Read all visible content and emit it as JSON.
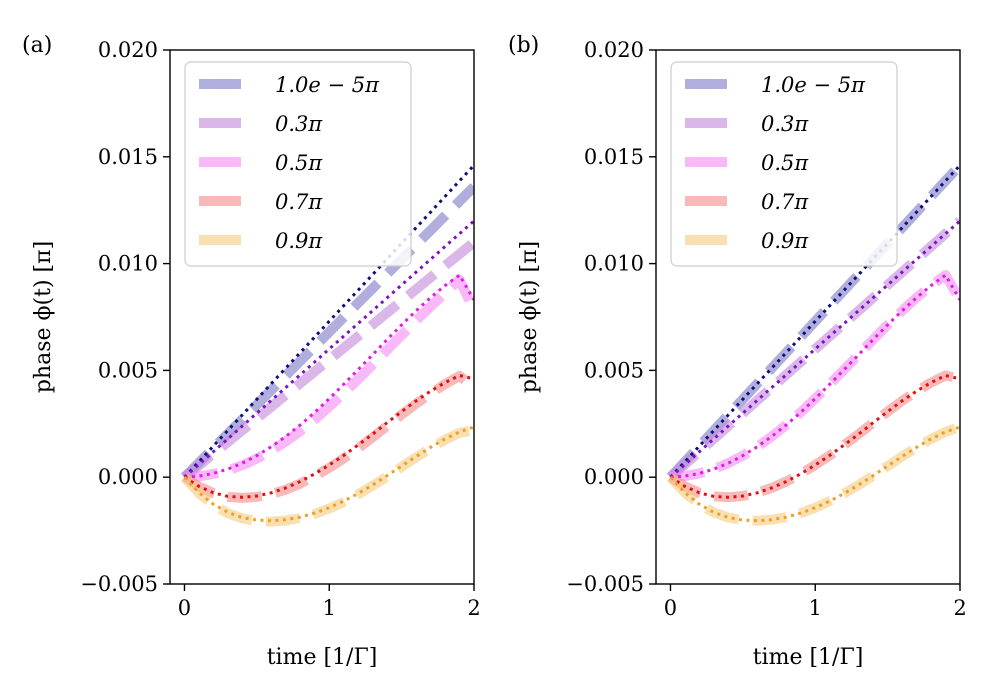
{
  "chart_data": [
    {
      "type": "line",
      "panel_label": "(a)",
      "xlabel": "time [1/Γ]",
      "ylabel": "phase ϕ(t) [π]",
      "xlim": [
        -0.1,
        2.0
      ],
      "ylim": [
        -0.005,
        0.02
      ],
      "xticks": [
        0,
        1,
        2
      ],
      "xtick_labels": [
        "0",
        "1",
        "2"
      ],
      "yticks": [
        -0.005,
        0.0,
        0.005,
        0.01,
        0.015,
        0.02
      ],
      "ytick_labels": [
        "−0.005",
        "0.000",
        "0.005",
        "0.010",
        "0.015",
        "0.020"
      ],
      "legend_position": "top-left",
      "x": [
        0,
        0.1,
        0.2,
        0.3,
        0.4,
        0.5,
        0.6,
        0.7,
        0.8,
        0.9,
        1.0,
        1.1,
        1.2,
        1.3,
        1.4,
        1.5,
        1.6,
        1.7,
        1.8,
        1.9,
        2.0
      ],
      "series": [
        {
          "name": "1.0e − 5π",
          "style": "dashed-band",
          "color": "#7b78c4",
          "values": [
            0,
            0.00068,
            0.00136,
            0.00204,
            0.00272,
            0.0034,
            0.00408,
            0.00476,
            0.00544,
            0.00612,
            0.0068,
            0.00748,
            0.00816,
            0.00884,
            0.00952,
            0.0102,
            0.01088,
            0.01156,
            0.01224,
            0.01292,
            0.0136
          ]
        },
        {
          "name": "0.3π",
          "style": "dashed-band",
          "color": "#c387db",
          "values": [
            0,
            0.00055,
            0.0011,
            0.00165,
            0.0022,
            0.00275,
            0.0033,
            0.00385,
            0.0044,
            0.00495,
            0.0055,
            0.00605,
            0.0066,
            0.00715,
            0.0077,
            0.00825,
            0.0088,
            0.00935,
            0.0099,
            0.01045,
            0.011
          ]
        },
        {
          "name": "0.5π",
          "style": "dashed-band",
          "color": "#f58bf5",
          "values": [
            0,
            4e-05,
            0.00015,
            0.00032,
            0.00056,
            0.00087,
            0.00124,
            0.00167,
            0.00216,
            0.00271,
            0.0033,
            0.00393,
            0.00459,
            0.00527,
            0.00596,
            0.00665,
            0.00733,
            0.00799,
            0.00863,
            0.00925,
            0.0078
          ]
        },
        {
          "name": "0.7π",
          "style": "dashed-band",
          "color": "#f48a8a",
          "values": [
            0,
            -0.00044,
            -0.00075,
            -0.00092,
            -0.00097,
            -0.00092,
            -0.00079,
            -0.00058,
            -0.0003,
            5e-05,
            0.00044,
            0.00088,
            0.00136,
            0.00187,
            0.0024,
            0.00293,
            0.00344,
            0.00392,
            0.00436,
            0.00474,
            0.0042
          ]
        },
        {
          "name": "0.9π",
          "style": "dashed-band",
          "color": "#f5cc7e",
          "values": [
            0,
            -0.00075,
            -0.0013,
            -0.00169,
            -0.00193,
            -0.00205,
            -0.00208,
            -0.00203,
            -0.00191,
            -0.00172,
            -0.00147,
            -0.00116,
            -0.0008,
            -0.0004,
            3e-05,
            0.00048,
            0.00093,
            0.00136,
            0.00175,
            0.00208,
            0.0022
          ]
        },
        {
          "name": "1.0e − 5π (dotted)",
          "style": "dotted",
          "color": "#0f0f7a",
          "values": [
            0,
            0.00073,
            0.00146,
            0.00219,
            0.00292,
            0.00365,
            0.00438,
            0.00511,
            0.00584,
            0.00657,
            0.0073,
            0.00803,
            0.00876,
            0.00949,
            0.01022,
            0.01095,
            0.01168,
            0.01241,
            0.01314,
            0.01387,
            0.0146
          ]
        },
        {
          "name": "0.3π (dotted)",
          "style": "dotted",
          "color": "#7a12c7",
          "values": [
            0,
            0.0006,
            0.0012,
            0.0018,
            0.0024,
            0.003,
            0.0036,
            0.0042,
            0.0048,
            0.0054,
            0.006,
            0.0066,
            0.0072,
            0.0078,
            0.0084,
            0.009,
            0.0096,
            0.0102,
            0.0108,
            0.0114,
            0.012
          ]
        },
        {
          "name": "0.5π (dotted)",
          "style": "dotted",
          "color": "#e41be4",
          "values": [
            0,
            5e-05,
            0.00018,
            0.00038,
            0.00066,
            0.00101,
            0.00143,
            0.00191,
            0.00245,
            0.00304,
            0.00368,
            0.00435,
            0.00504,
            0.00574,
            0.00644,
            0.00713,
            0.00779,
            0.00841,
            0.00897,
            0.00946,
            0.0083
          ]
        },
        {
          "name": "0.7π (dotted)",
          "style": "dotted",
          "color": "#e01010",
          "values": [
            0,
            -0.00043,
            -0.00073,
            -0.0009,
            -0.00094,
            -0.00088,
            -0.00073,
            -0.0005,
            -0.0002,
            0.00016,
            0.00057,
            0.00102,
            0.00151,
            0.00202,
            0.00255,
            0.00307,
            0.00357,
            0.00403,
            0.00443,
            0.00476,
            0.0046
          ]
        },
        {
          "name": "0.9π (dotted)",
          "style": "dotted",
          "color": "#f0a020",
          "values": [
            0,
            -0.00073,
            -0.00127,
            -0.00165,
            -0.00189,
            -0.00201,
            -0.00204,
            -0.00199,
            -0.00187,
            -0.00168,
            -0.00143,
            -0.00112,
            -0.00076,
            -0.00036,
            7e-05,
            0.00052,
            0.00097,
            0.0014,
            0.00179,
            0.00212,
            0.00235
          ]
        }
      ]
    },
    {
      "type": "line",
      "panel_label": "(b)",
      "xlabel": "time [1/Γ]",
      "ylabel": "phase ϕ(t) [π]",
      "xlim": [
        -0.1,
        2.0
      ],
      "ylim": [
        -0.005,
        0.02
      ],
      "xticks": [
        0,
        1,
        2
      ],
      "xtick_labels": [
        "0",
        "1",
        "2"
      ],
      "yticks": [
        -0.005,
        0.0,
        0.005,
        0.01,
        0.015,
        0.02
      ],
      "ytick_labels": [
        "−0.005",
        "0.000",
        "0.005",
        "0.010",
        "0.015",
        "0.020"
      ],
      "legend_position": "top-left",
      "x": [
        0,
        0.1,
        0.2,
        0.3,
        0.4,
        0.5,
        0.6,
        0.7,
        0.8,
        0.9,
        1.0,
        1.1,
        1.2,
        1.3,
        1.4,
        1.5,
        1.6,
        1.7,
        1.8,
        1.9,
        2.0
      ],
      "series": [
        {
          "name": "1.0e − 5π",
          "style": "dashed-band",
          "color": "#7b78c4",
          "values": [
            0,
            0.00073,
            0.00146,
            0.00219,
            0.00292,
            0.00365,
            0.00438,
            0.00511,
            0.00584,
            0.00657,
            0.0073,
            0.00803,
            0.00876,
            0.00949,
            0.01022,
            0.01095,
            0.01168,
            0.01241,
            0.01314,
            0.01387,
            0.0146
          ]
        },
        {
          "name": "0.3π",
          "style": "dashed-band",
          "color": "#c387db",
          "values": [
            0,
            0.0006,
            0.0012,
            0.0018,
            0.0024,
            0.003,
            0.0036,
            0.0042,
            0.0048,
            0.0054,
            0.006,
            0.0066,
            0.0072,
            0.0078,
            0.0084,
            0.009,
            0.0096,
            0.0102,
            0.0108,
            0.0114,
            0.012
          ]
        },
        {
          "name": "0.5π",
          "style": "dashed-band",
          "color": "#f58bf5",
          "values": [
            0,
            5e-05,
            0.00018,
            0.00038,
            0.00066,
            0.00101,
            0.00143,
            0.00191,
            0.00245,
            0.00304,
            0.00368,
            0.00435,
            0.00504,
            0.00574,
            0.00644,
            0.00713,
            0.00779,
            0.00841,
            0.00897,
            0.00946,
            0.0083
          ]
        },
        {
          "name": "0.7π",
          "style": "dashed-band",
          "color": "#f48a8a",
          "values": [
            0,
            -0.00043,
            -0.00073,
            -0.0009,
            -0.00094,
            -0.00088,
            -0.00073,
            -0.0005,
            -0.0002,
            0.00016,
            0.00057,
            0.00102,
            0.00151,
            0.00202,
            0.00255,
            0.00307,
            0.00357,
            0.00403,
            0.00443,
            0.00476,
            0.0046
          ]
        },
        {
          "name": "0.9π",
          "style": "dashed-band",
          "color": "#f5cc7e",
          "values": [
            0,
            -0.00073,
            -0.00127,
            -0.00165,
            -0.00189,
            -0.00201,
            -0.00204,
            -0.00199,
            -0.00187,
            -0.00168,
            -0.00143,
            -0.00112,
            -0.00076,
            -0.00036,
            7e-05,
            0.00052,
            0.00097,
            0.0014,
            0.00179,
            0.00212,
            0.00235
          ]
        },
        {
          "name": "1.0e − 5π (dotted)",
          "style": "dotted",
          "color": "#0f0f7a",
          "values": [
            0,
            0.00073,
            0.00146,
            0.00219,
            0.00292,
            0.00365,
            0.00438,
            0.00511,
            0.00584,
            0.00657,
            0.0073,
            0.00803,
            0.00876,
            0.00949,
            0.01022,
            0.01095,
            0.01168,
            0.01241,
            0.01314,
            0.01387,
            0.0146
          ]
        },
        {
          "name": "0.3π (dotted)",
          "style": "dotted",
          "color": "#7a12c7",
          "values": [
            0,
            0.0006,
            0.0012,
            0.0018,
            0.0024,
            0.003,
            0.0036,
            0.0042,
            0.0048,
            0.0054,
            0.006,
            0.0066,
            0.0072,
            0.0078,
            0.0084,
            0.009,
            0.0096,
            0.0102,
            0.0108,
            0.0114,
            0.012
          ]
        },
        {
          "name": "0.5π (dotted)",
          "style": "dotted",
          "color": "#e41be4",
          "values": [
            0,
            5e-05,
            0.00018,
            0.00038,
            0.00066,
            0.00101,
            0.00143,
            0.00191,
            0.00245,
            0.00304,
            0.00368,
            0.00435,
            0.00504,
            0.00574,
            0.00644,
            0.00713,
            0.00779,
            0.00841,
            0.00897,
            0.00946,
            0.0083
          ]
        },
        {
          "name": "0.7π (dotted)",
          "style": "dotted",
          "color": "#e01010",
          "values": [
            0,
            -0.00043,
            -0.00073,
            -0.0009,
            -0.00094,
            -0.00088,
            -0.00073,
            -0.0005,
            -0.0002,
            0.00016,
            0.00057,
            0.00102,
            0.00151,
            0.00202,
            0.00255,
            0.00307,
            0.00357,
            0.00403,
            0.00443,
            0.00476,
            0.0046
          ]
        },
        {
          "name": "0.9π (dotted)",
          "style": "dotted",
          "color": "#f0a020",
          "values": [
            0,
            -0.00073,
            -0.00127,
            -0.00165,
            -0.00189,
            -0.00201,
            -0.00204,
            -0.00199,
            -0.00187,
            -0.00168,
            -0.00143,
            -0.00112,
            -0.00076,
            -0.00036,
            7e-05,
            0.00052,
            0.00097,
            0.0014,
            0.00179,
            0.00212,
            0.00235
          ]
        }
      ]
    }
  ],
  "legend": {
    "entries": [
      {
        "label": "1.0e − 5π",
        "color": "#7b78c4"
      },
      {
        "label": "0.3π",
        "color": "#c387db"
      },
      {
        "label": "0.5π",
        "color": "#f58bf5"
      },
      {
        "label": "0.7π",
        "color": "#f48a8a"
      },
      {
        "label": "0.9π",
        "color": "#f5cc7e"
      }
    ]
  }
}
